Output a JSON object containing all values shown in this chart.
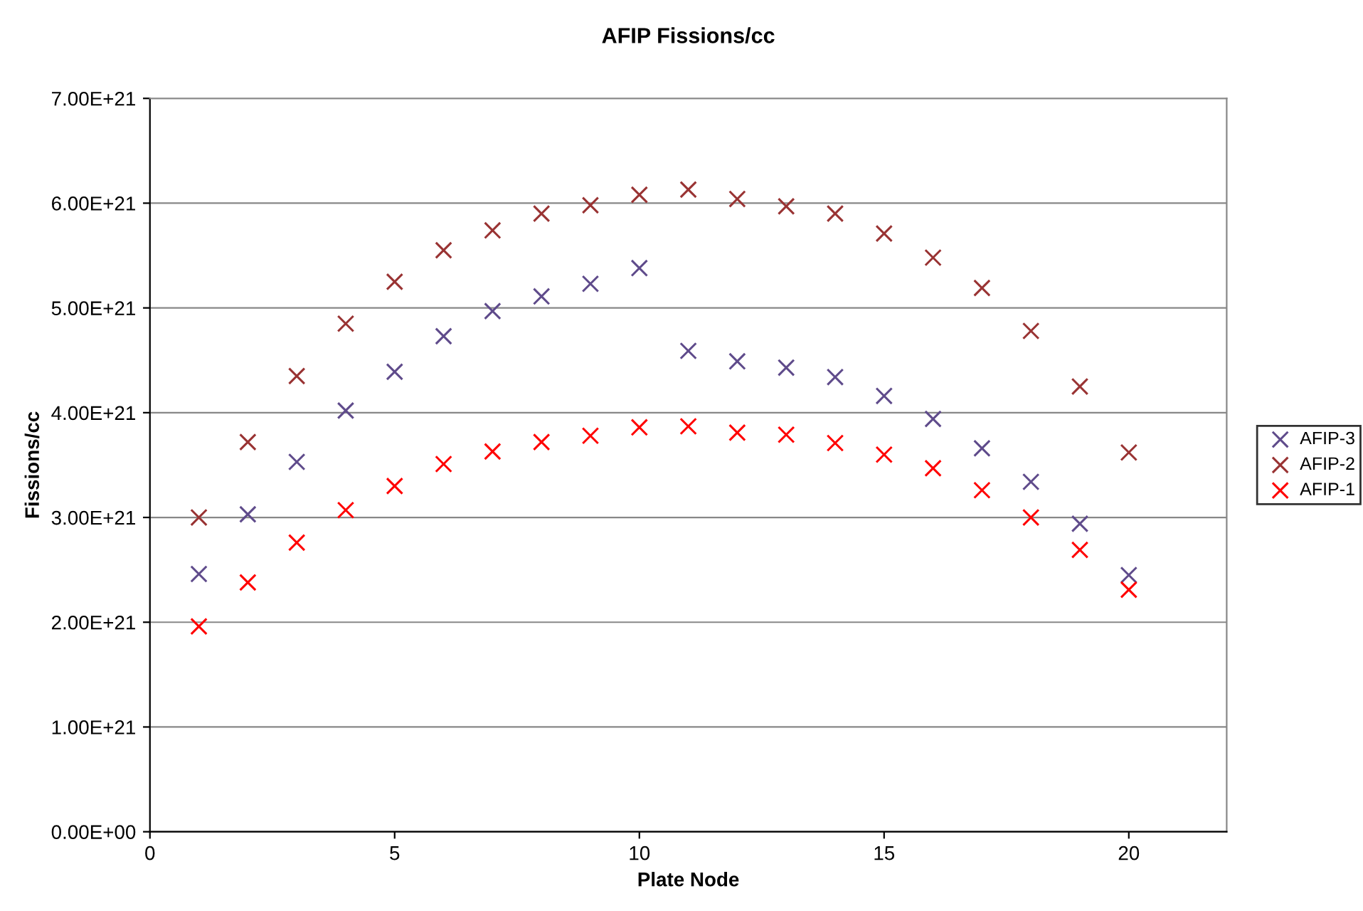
{
  "chart_data": {
    "type": "scatter",
    "title": "AFIP Fissions/cc",
    "xlabel": "Plate Node",
    "ylabel": "Fissions/cc",
    "x": [
      1,
      2,
      3,
      4,
      5,
      6,
      7,
      8,
      9,
      10,
      11,
      12,
      13,
      14,
      15,
      16,
      17,
      18,
      19,
      20
    ],
    "series": [
      {
        "name": "AFIP-3",
        "color": "#5f4b8b",
        "values": [
          2.46e+21,
          3.03e+21,
          3.53e+21,
          4.02e+21,
          4.39e+21,
          4.73e+21,
          4.97e+21,
          5.11e+21,
          5.23e+21,
          5.38e+21,
          4.59e+21,
          4.49e+21,
          4.43e+21,
          4.34e+21,
          4.16e+21,
          3.94e+21,
          3.66e+21,
          3.34e+21,
          2.94e+21,
          2.45e+21
        ]
      },
      {
        "name": "AFIP-2",
        "color": "#993333",
        "values": [
          3e+21,
          3.72e+21,
          4.35e+21,
          4.85e+21,
          5.25e+21,
          5.55e+21,
          5.74e+21,
          5.9e+21,
          5.98e+21,
          6.08e+21,
          6.13e+21,
          6.04e+21,
          5.97e+21,
          5.9e+21,
          5.71e+21,
          5.48e+21,
          5.19e+21,
          4.78e+21,
          4.25e+21,
          3.62e+21
        ]
      },
      {
        "name": "AFIP-1",
        "color": "#ff0000",
        "values": [
          1.96e+21,
          2.38e+21,
          2.76e+21,
          3.07e+21,
          3.3e+21,
          3.51e+21,
          3.63e+21,
          3.72e+21,
          3.78e+21,
          3.86e+21,
          3.87e+21,
          3.81e+21,
          3.79e+21,
          3.71e+21,
          3.6e+21,
          3.47e+21,
          3.26e+21,
          3e+21,
          2.69e+21,
          2.31e+21
        ]
      }
    ],
    "xlim": [
      0,
      22
    ],
    "xticks": [
      0,
      5,
      10,
      15,
      20
    ],
    "ylim": [
      0,
      7e+21
    ],
    "yticks": [
      {
        "value": 0,
        "label": "0.00E+00"
      },
      {
        "value": 1e+21,
        "label": "1.00E+21"
      },
      {
        "value": 2e+21,
        "label": "2.00E+21"
      },
      {
        "value": 3e+21,
        "label": "3.00E+21"
      },
      {
        "value": 4e+21,
        "label": "4.00E+21"
      },
      {
        "value": 5e+21,
        "label": "5.00E+21"
      },
      {
        "value": 6e+21,
        "label": "6.00E+21"
      },
      {
        "value": 7e+21,
        "label": "7.00E+21"
      }
    ],
    "grid": "y",
    "legend": "right",
    "marker": "cross"
  }
}
